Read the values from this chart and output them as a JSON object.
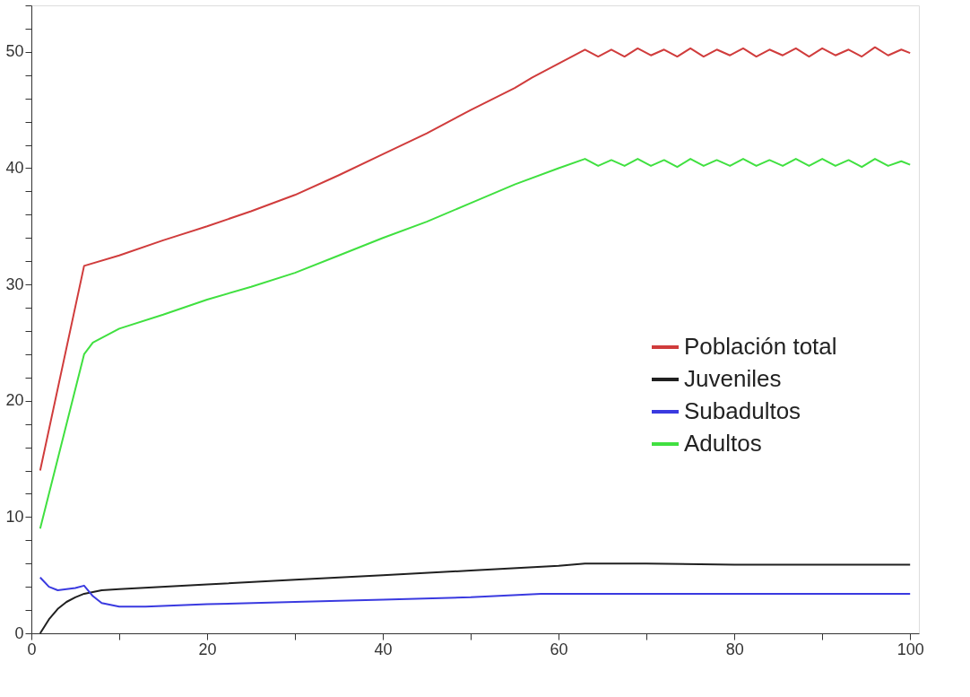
{
  "chart_data": {
    "type": "line",
    "xlim": [
      0,
      101
    ],
    "ylim": [
      0,
      54
    ],
    "xticks": [
      0,
      {
        "value": 10,
        "label": null
      },
      20,
      {
        "value": 30,
        "label": null
      },
      40,
      {
        "value": 50,
        "label": null
      },
      60,
      {
        "value": 70,
        "label": null
      },
      80,
      {
        "value": 90,
        "label": null
      },
      100
    ],
    "yticks": [
      0,
      {
        "value": 2,
        "label": null
      },
      {
        "value": 4,
        "label": null
      },
      {
        "value": 6,
        "label": null
      },
      {
        "value": 8,
        "label": null
      },
      10,
      {
        "value": 12,
        "label": null
      },
      {
        "value": 14,
        "label": null
      },
      {
        "value": 16,
        "label": null
      },
      {
        "value": 18,
        "label": null
      },
      20,
      {
        "value": 22,
        "label": null
      },
      {
        "value": 24,
        "label": null
      },
      {
        "value": 26,
        "label": null
      },
      {
        "value": 28,
        "label": null
      },
      30,
      {
        "value": 32,
        "label": null
      },
      {
        "value": 34,
        "label": null
      },
      {
        "value": 36,
        "label": null
      },
      {
        "value": 38,
        "label": null
      },
      40,
      {
        "value": 42,
        "label": null
      },
      {
        "value": 44,
        "label": null
      },
      {
        "value": 46,
        "label": null
      },
      {
        "value": 48,
        "label": null
      },
      50,
      {
        "value": 52,
        "label": null
      },
      {
        "value": 54,
        "label": null
      }
    ],
    "grid": false,
    "legend": "right",
    "line_style": "solid",
    "marker": "none",
    "series": [
      {
        "name": "Población total",
        "color": "#d03c3c",
        "x": [
          1,
          6,
          10,
          15,
          20,
          25,
          30,
          35,
          40,
          45,
          50,
          55,
          57,
          60,
          63,
          64.5,
          66,
          67.5,
          69,
          70.5,
          72,
          73.5,
          75,
          76.5,
          78,
          79.5,
          81,
          82.5,
          84,
          85.5,
          87,
          88.5,
          90,
          91.5,
          93,
          94.5,
          96,
          97.5,
          99,
          100
        ],
        "values": [
          14,
          31.6,
          32.5,
          33.8,
          35,
          36.3,
          37.7,
          39.4,
          41.2,
          43,
          45,
          46.9,
          47.8,
          49,
          50.2,
          49.6,
          50.2,
          49.6,
          50.3,
          49.7,
          50.2,
          49.6,
          50.3,
          49.6,
          50.2,
          49.7,
          50.3,
          49.6,
          50.2,
          49.7,
          50.3,
          49.6,
          50.3,
          49.7,
          50.2,
          49.6,
          50.4,
          49.7,
          50.2,
          49.9
        ]
      },
      {
        "name": "Juveniles",
        "color": "#202020",
        "x": [
          1,
          2,
          3,
          4,
          5,
          6,
          8,
          10,
          20,
          30,
          40,
          50,
          60,
          63,
          70,
          80,
          90,
          100
        ],
        "values": [
          0,
          1.2,
          2.1,
          2.7,
          3.1,
          3.4,
          3.7,
          3.8,
          4.2,
          4.6,
          5,
          5.4,
          5.8,
          6,
          6,
          5.9,
          5.9,
          5.9
        ]
      },
      {
        "name": "Subadultos",
        "color": "#3a3ae0",
        "x": [
          1,
          2,
          3,
          5,
          6,
          7,
          8,
          10,
          13,
          20,
          30,
          40,
          50,
          58,
          70,
          80,
          90,
          100
        ],
        "values": [
          4.8,
          4,
          3.7,
          3.9,
          4.1,
          3.2,
          2.6,
          2.3,
          2.3,
          2.5,
          2.7,
          2.9,
          3.1,
          3.4,
          3.4,
          3.4,
          3.4,
          3.4
        ]
      },
      {
        "name": "Adultos",
        "color": "#40e040",
        "x": [
          1,
          6,
          7,
          10,
          15,
          20,
          25,
          30,
          35,
          40,
          45,
          50,
          55,
          60,
          63,
          64.5,
          66,
          67.5,
          69,
          70.5,
          72,
          73.5,
          75,
          76.5,
          78,
          79.5,
          81,
          82.5,
          84,
          85.5,
          87,
          88.5,
          90,
          91.5,
          93,
          94.5,
          96,
          97.5,
          99,
          100
        ],
        "values": [
          9,
          24,
          25,
          26.2,
          27.4,
          28.7,
          29.8,
          31,
          32.5,
          34,
          35.4,
          37,
          38.6,
          40,
          40.8,
          40.2,
          40.7,
          40.2,
          40.8,
          40.2,
          40.7,
          40.1,
          40.8,
          40.2,
          40.7,
          40.2,
          40.8,
          40.2,
          40.7,
          40.2,
          40.8,
          40.2,
          40.8,
          40.2,
          40.7,
          40.1,
          40.8,
          40.2,
          40.6,
          40.3
        ]
      }
    ]
  }
}
